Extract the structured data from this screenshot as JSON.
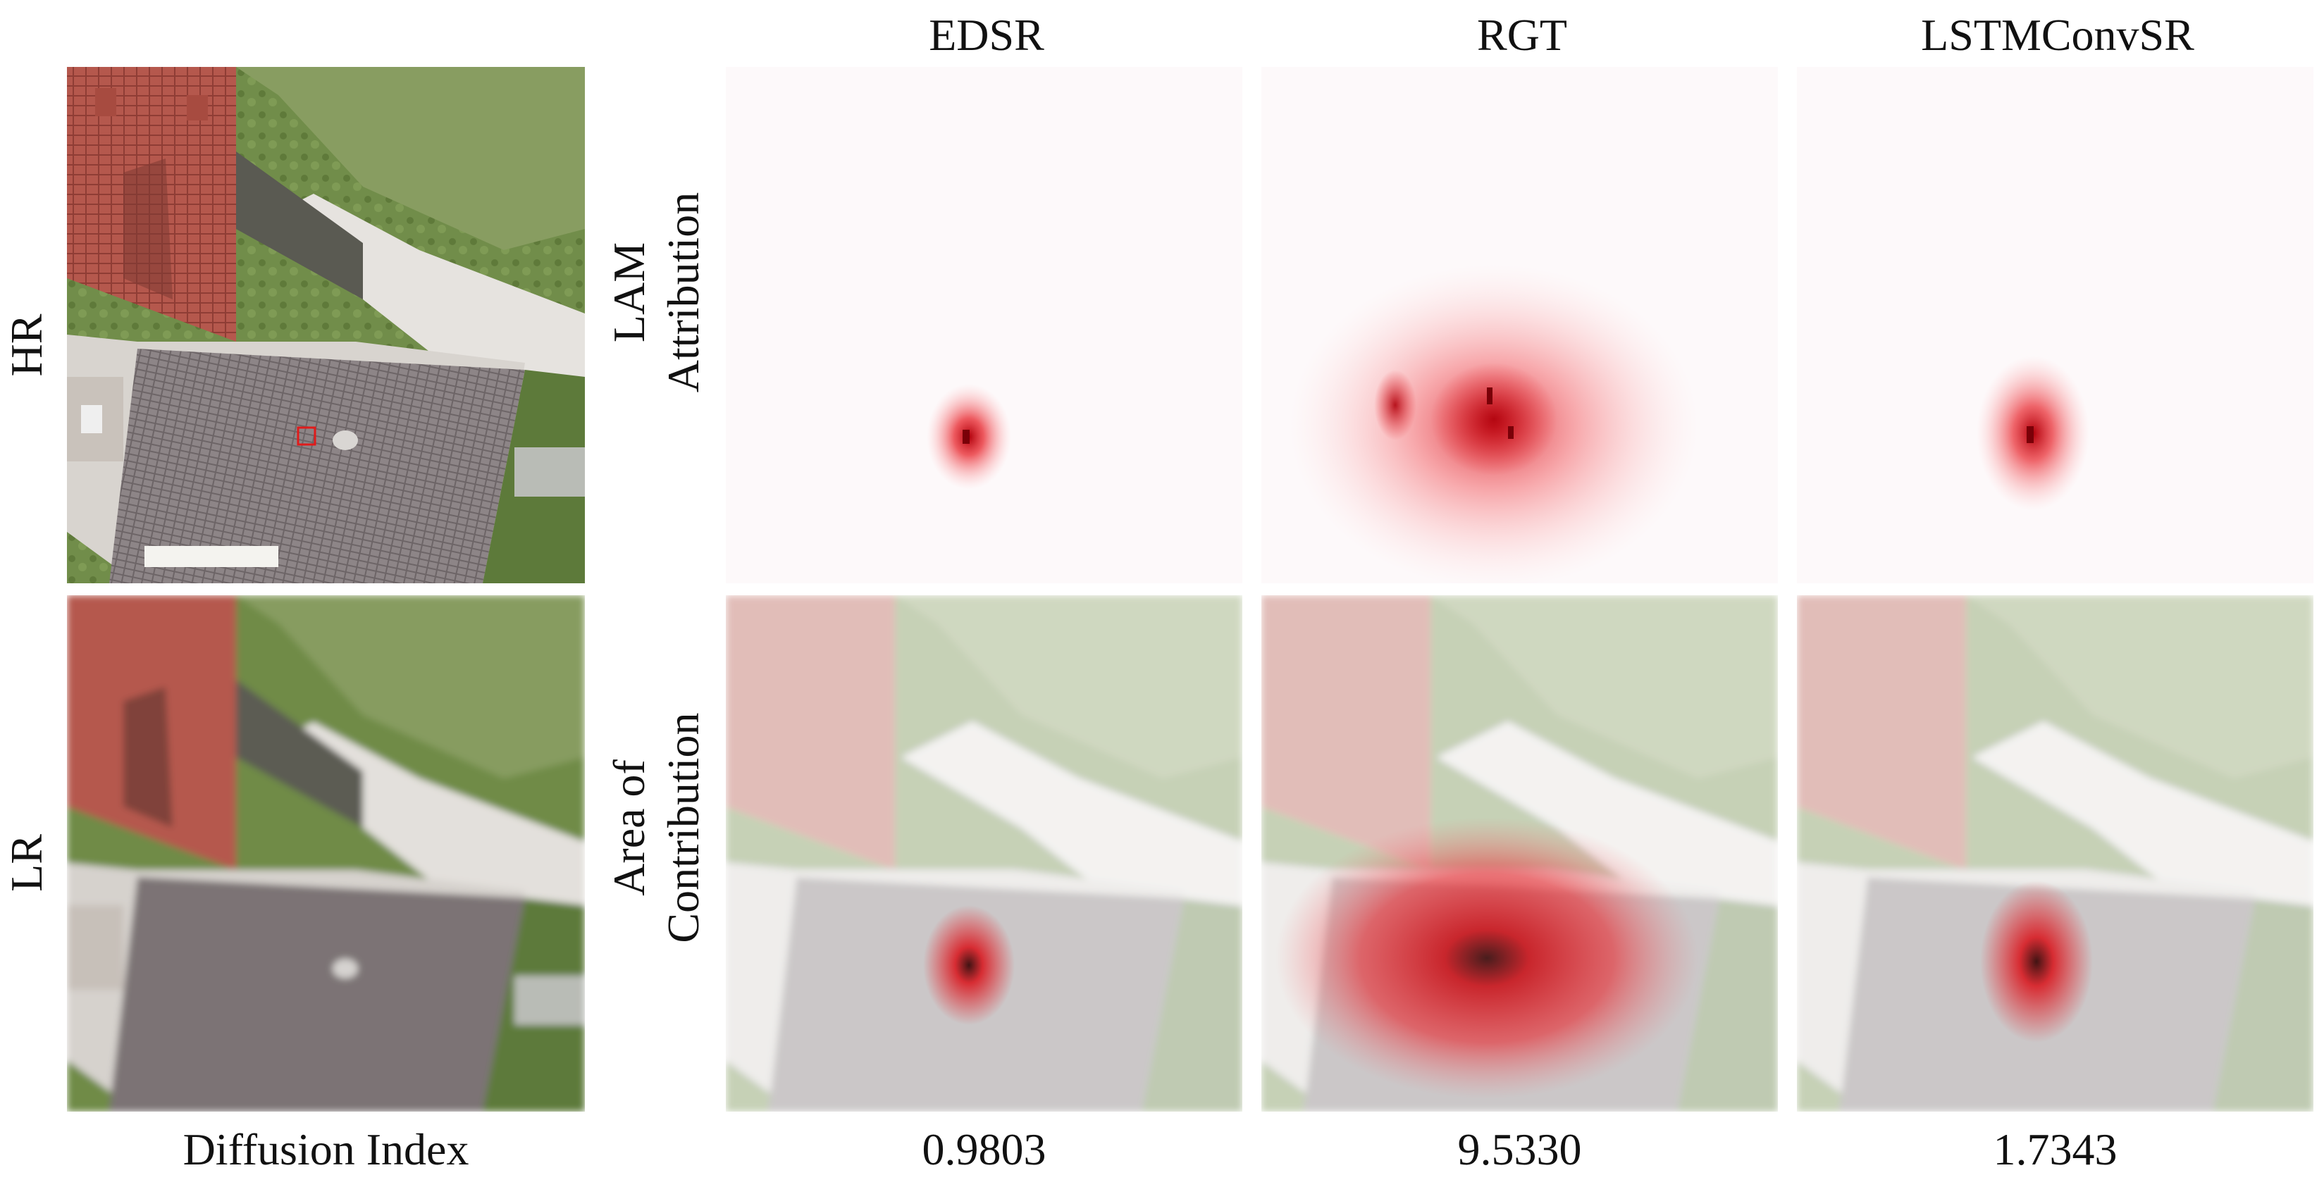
{
  "columns": [
    "EDSR",
    "RGT",
    "LSTMConvSR"
  ],
  "row_labels": {
    "hr": "HR",
    "lr": "LR",
    "lam_line1": "LAM",
    "lam_line2": "Attribution",
    "area_line1": "Area of",
    "area_line2": "Contribution"
  },
  "diffusion_label": "Diffusion Index",
  "scores": [
    "0.9803",
    "9.5330",
    "1.7343"
  ],
  "colors": {
    "roof_tile": "#b5584d",
    "roof_gray": "#8a8284",
    "grass": "#6f8b47",
    "heat": "#e8242b",
    "marker": "#e01b1b"
  }
}
